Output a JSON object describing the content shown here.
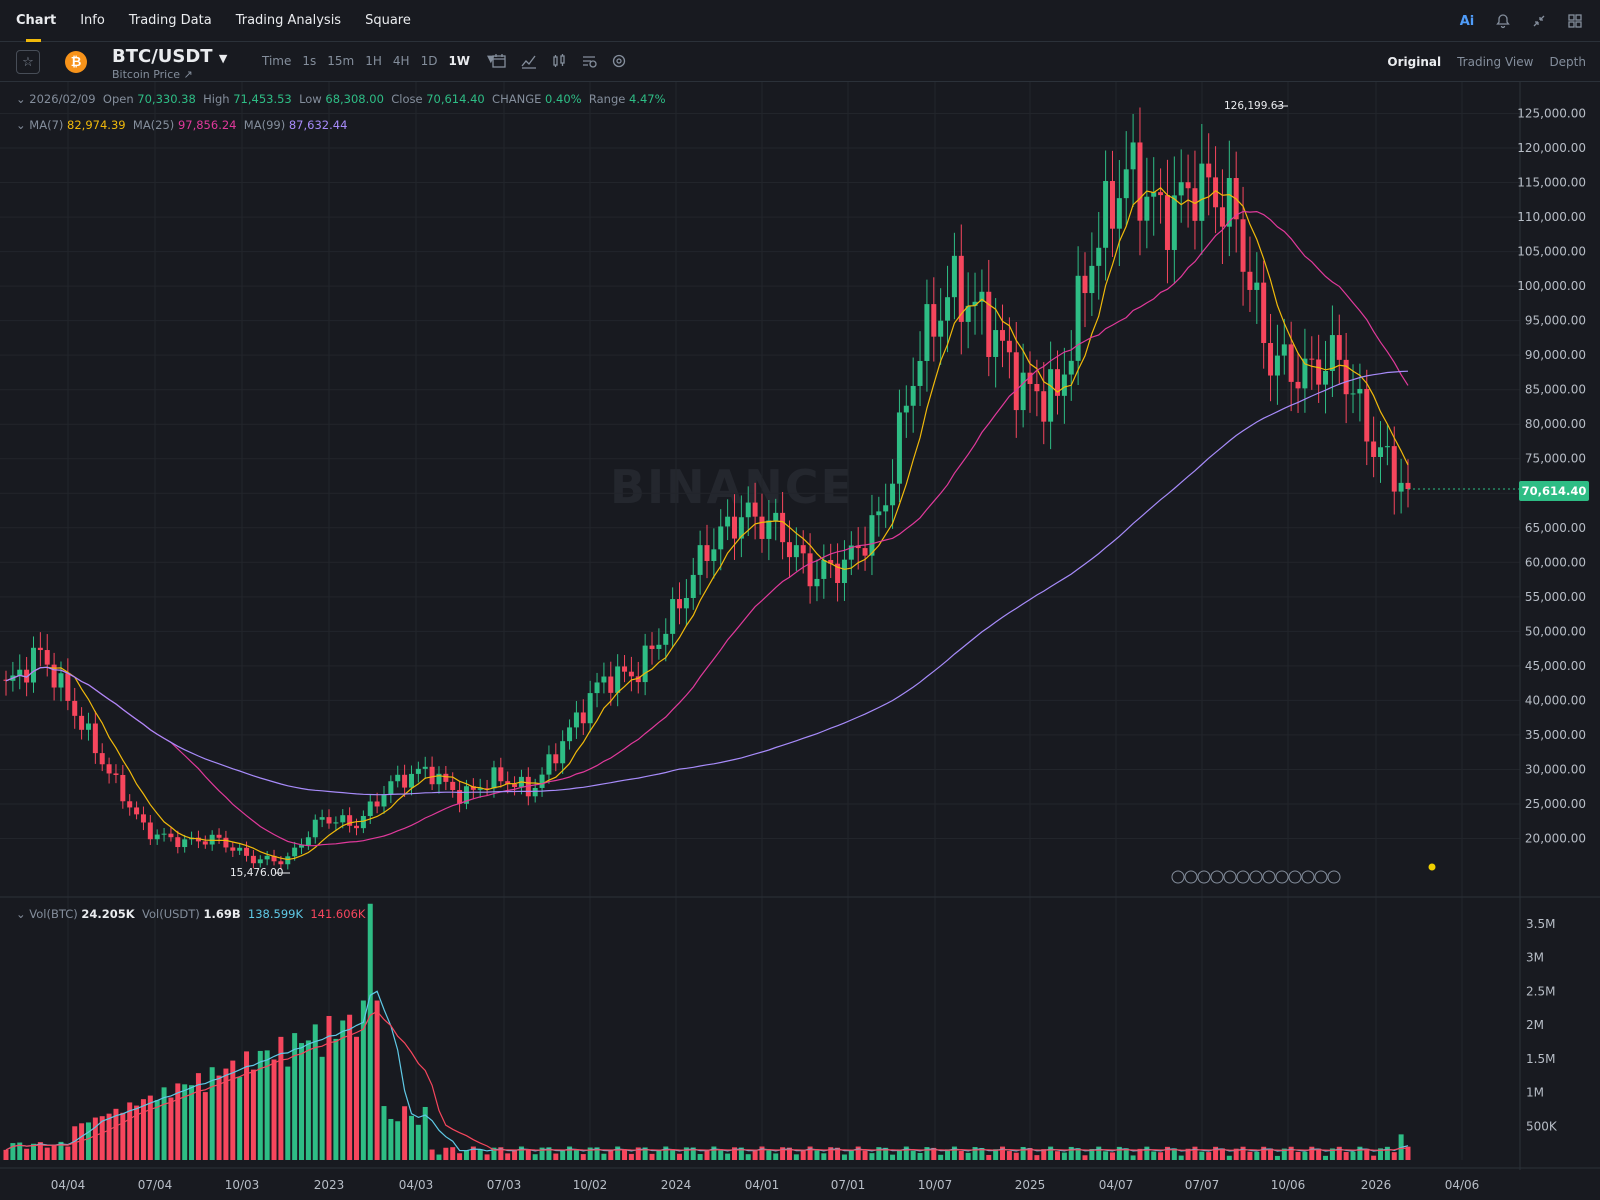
{
  "nav": {
    "tabs": [
      "Chart",
      "Info",
      "Trading Data",
      "Trading Analysis",
      "Square"
    ],
    "right_icons": [
      "ai-icon",
      "bell-icon",
      "collapse-icon",
      "layout-icon"
    ],
    "ai_label": "Ai"
  },
  "symbol": {
    "pair": "BTC/USDT",
    "subtitle": "Bitcoin Price ↗",
    "coin_glyph": "₿",
    "intervals": [
      "Time",
      "1s",
      "15m",
      "1H",
      "4H",
      "1D",
      "1W"
    ],
    "selected_interval": "1W",
    "views": [
      "Original",
      "Trading View",
      "Depth"
    ],
    "selected_view": "Original"
  },
  "ohlc": {
    "date": "2026/02/09",
    "open_label": "Open",
    "open": "70,330.38",
    "high_label": "High",
    "high": "71,453.53",
    "low_label": "Low",
    "low": "68,308.00",
    "close_label": "Close",
    "close": "70,614.40",
    "change_label": "CHANGE",
    "change": "0.40%",
    "range_label": "Range",
    "range": "4.47%"
  },
  "ma": {
    "ma7_label": "MA(7)",
    "ma7": "82,974.39",
    "ma25_label": "MA(25)",
    "ma25": "97,856.24",
    "ma99_label": "MA(99)",
    "ma99": "87,632.44"
  },
  "volume": {
    "vol_btc_label": "Vol(BTC)",
    "vol_btc": "24.205K",
    "vol_usdt_label": "Vol(USDT)",
    "vol_usdt": "1.69B",
    "ma1": "138.599K",
    "ma2": "141.606K"
  },
  "watermark": "BINANCE",
  "current_price": "70,614.40",
  "colors": {
    "up": "#2ebd85",
    "down": "#f6465d",
    "ma7": "#f0b90b",
    "ma25": "#e0399b",
    "ma99": "#a78bfa",
    "vma1": "#5fc9e6",
    "vma2": "#f6465d",
    "bg": "#181a20"
  },
  "chart_data": {
    "type": "candlestick",
    "price_ticks": [
      "125,000.00",
      "120,000.00",
      "115,000.00",
      "110,000.00",
      "105,000.00",
      "100,000.00",
      "95,000.00",
      "90,000.00",
      "85,000.00",
      "80,000.00",
      "75,000.00",
      "70,000.00",
      "65,000.00",
      "60,000.00",
      "55,000.00",
      "50,000.00",
      "45,000.00",
      "40,000.00",
      "35,000.00",
      "30,000.00",
      "25,000.00",
      "20,000.00"
    ],
    "price_tick_values": [
      125000,
      120000,
      115000,
      110000,
      105000,
      100000,
      95000,
      90000,
      85000,
      80000,
      75000,
      70000,
      65000,
      60000,
      55000,
      50000,
      45000,
      40000,
      35000,
      30000,
      25000,
      20000
    ],
    "volume_ticks": [
      "3.5M",
      "3M",
      "2.5M",
      "2M",
      "1.5M",
      "1M",
      "500K"
    ],
    "volume_tick_values": [
      3500000,
      3000000,
      2500000,
      2000000,
      1500000,
      1000000,
      500000
    ],
    "x_labels": [
      "04/04",
      "07/04",
      "10/03",
      "2023",
      "04/03",
      "07/03",
      "10/02",
      "2024",
      "04/01",
      "07/01",
      "10/07",
      "2025",
      "04/07",
      "07/07",
      "10/06",
      "2026",
      "04/06"
    ],
    "annotations": [
      {
        "text": "126,199.63",
        "kind": "high"
      },
      {
        "text": "15,476.00",
        "kind": "low"
      }
    ],
    "weekly_close_anchors": [
      42000,
      47000,
      38000,
      29000,
      21000,
      19500,
      20000,
      17000,
      16800,
      23000,
      22000,
      28000,
      30000,
      26000,
      29000,
      26800,
      35000,
      43000,
      44000,
      52000,
      62000,
      67000,
      65000,
      58000,
      60000,
      67000,
      90000,
      100000,
      95000,
      85000,
      84000,
      105000,
      117000,
      110000,
      115000,
      111000,
      90000,
      87000,
      90000,
      77000,
      70600
    ],
    "volume_profile_note": "weekly volumes peaked near 3.8M in early 2023, under 500K since"
  }
}
